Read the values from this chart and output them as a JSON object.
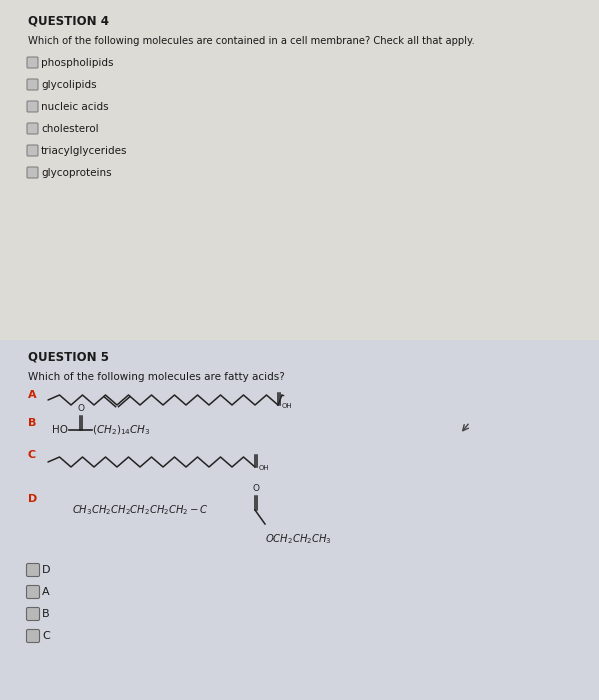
{
  "bg_color": "#c8c8c8",
  "panel_top_color": "#dddbd5",
  "panel_bot_color": "#d5d8e0",
  "separator_color": "#aaaaaa",
  "text_color": "#1a1a1a",
  "label_red": "#cc2200",
  "mol_color": "#222222",
  "checkbox_face": "#bbbbbb",
  "checkbox_edge": "#666666",
  "q4_title": "QUESTION 4",
  "q4_question": "Which of the following molecules are contained in a cell membrane? Check all that apply.",
  "q4_options": [
    "phospholipids",
    "glycolipids",
    "nucleic acids",
    "cholesterol",
    "triacylglycerides",
    "glycoproteins"
  ],
  "q5_title": "QUESTION 5",
  "q5_question": "Which of the following molecules are fatty acids?",
  "answer_options": [
    "D",
    "A",
    "B",
    "C"
  ],
  "fig_w": 5.99,
  "fig_h": 7.0,
  "dpi": 100
}
